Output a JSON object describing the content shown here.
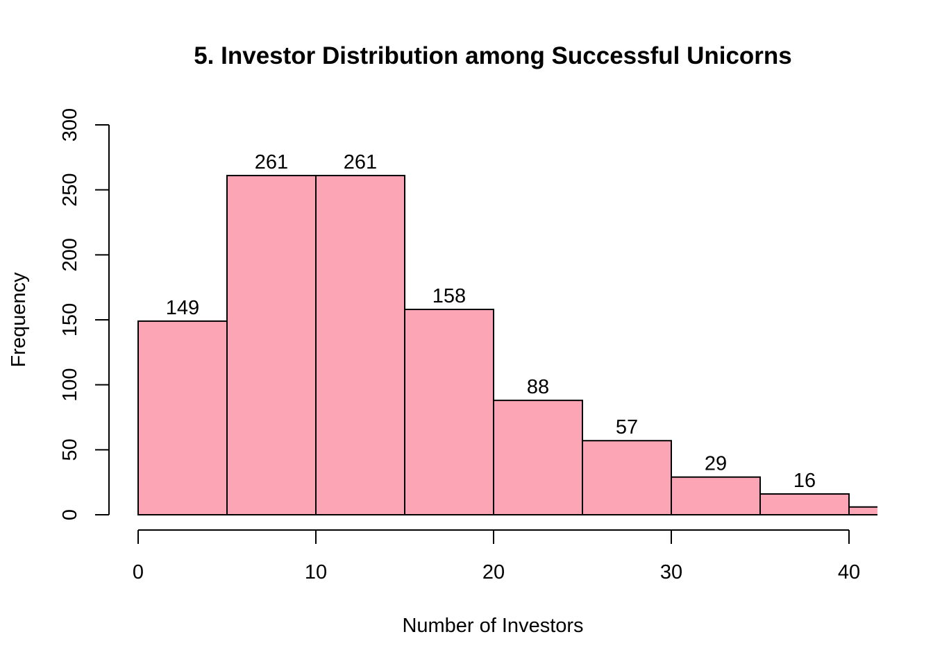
{
  "chart_data": {
    "type": "bar",
    "title": "5. Investor Distribution among Successful Unicorns",
    "xlabel": "Number of Investors",
    "ylabel": "Frequency",
    "bin_edges": [
      0,
      5,
      10,
      15,
      20,
      25,
      30,
      35,
      40,
      45
    ],
    "values": [
      149,
      261,
      261,
      158,
      88,
      57,
      29,
      16,
      6
    ],
    "data_labels": [
      "149",
      "261",
      "261",
      "158",
      "88",
      "57",
      "29",
      "16",
      ""
    ],
    "x_ticks": [
      0,
      10,
      20,
      30,
      40
    ],
    "y_ticks": [
      0,
      50,
      100,
      150,
      200,
      250,
      300
    ],
    "xlim": [
      0,
      41.6
    ],
    "ylim": [
      0,
      300
    ],
    "grid": false,
    "bar_color": "#FCA5B5",
    "edge_color": "#000000"
  }
}
